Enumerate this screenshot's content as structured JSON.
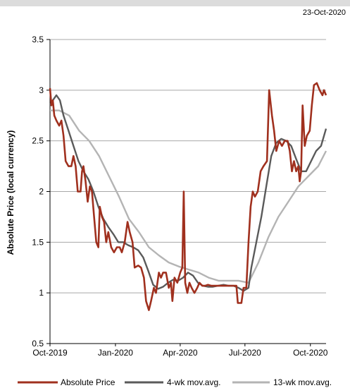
{
  "header": {
    "date": "23-Oct-2020"
  },
  "chart_data": {
    "type": "line",
    "title": "",
    "xlabel": "",
    "ylabel": "Absolute Price (local currency)",
    "ylim": [
      0.5,
      3.5
    ],
    "yticks": [
      0.5,
      1,
      1.5,
      2,
      2.5,
      3,
      3.5
    ],
    "ytick_labels": [
      "0.5",
      "1",
      "1.5",
      "2",
      "2.5",
      "3",
      "3.5"
    ],
    "xlim": [
      "2019-10-01",
      "2020-10-23"
    ],
    "xticks": [
      "2019-10-01",
      "2020-01-01",
      "2020-04-01",
      "2020-07-01",
      "2020-10-01"
    ],
    "xtick_labels": [
      "Oct-2019",
      "Jan-2020",
      "Apr-2020",
      "Jul-2020",
      "Oct-2020"
    ],
    "grid": "horizontal",
    "legend_position": "bottom",
    "colors": {
      "absolute": "#a0301e",
      "wk4": "#5a5a5a",
      "wk13": "#b4b4b4"
    },
    "series": [
      {
        "name": "Absolute Price",
        "points": [
          [
            "2019-10-01",
            3.02
          ],
          [
            "2019-10-03",
            2.85
          ],
          [
            "2019-10-05",
            2.9
          ],
          [
            "2019-10-07",
            2.75
          ],
          [
            "2019-10-10",
            2.7
          ],
          [
            "2019-10-14",
            2.65
          ],
          [
            "2019-10-17",
            2.7
          ],
          [
            "2019-10-20",
            2.55
          ],
          [
            "2019-10-23",
            2.3
          ],
          [
            "2019-10-27",
            2.25
          ],
          [
            "2019-10-31",
            2.25
          ],
          [
            "2019-11-03",
            2.35
          ],
          [
            "2019-11-06",
            2.25
          ],
          [
            "2019-11-09",
            2.0
          ],
          [
            "2019-11-13",
            2.0
          ],
          [
            "2019-11-15",
            2.2
          ],
          [
            "2019-11-17",
            2.25
          ],
          [
            "2019-11-20",
            2.1
          ],
          [
            "2019-11-23",
            1.9
          ],
          [
            "2019-11-26",
            2.05
          ],
          [
            "2019-11-29",
            2.0
          ],
          [
            "2019-12-02",
            1.75
          ],
          [
            "2019-12-05",
            1.5
          ],
          [
            "2019-12-08",
            1.45
          ],
          [
            "2019-12-10",
            1.85
          ],
          [
            "2019-12-13",
            1.75
          ],
          [
            "2019-12-16",
            1.7
          ],
          [
            "2019-12-19",
            1.5
          ],
          [
            "2019-12-22",
            1.6
          ],
          [
            "2019-12-26",
            1.45
          ],
          [
            "2019-12-30",
            1.4
          ],
          [
            "2020-01-03",
            1.45
          ],
          [
            "2020-01-07",
            1.45
          ],
          [
            "2020-01-10",
            1.4
          ],
          [
            "2020-01-14",
            1.5
          ],
          [
            "2020-01-18",
            1.7
          ],
          [
            "2020-01-21",
            1.6
          ],
          [
            "2020-01-25",
            1.5
          ],
          [
            "2020-01-28",
            1.25
          ],
          [
            "2020-02-02",
            1.27
          ],
          [
            "2020-02-06",
            1.25
          ],
          [
            "2020-02-10",
            1.15
          ],
          [
            "2020-02-13",
            0.92
          ],
          [
            "2020-02-17",
            0.83
          ],
          [
            "2020-02-20",
            0.92
          ],
          [
            "2020-02-24",
            1.05
          ],
          [
            "2020-02-27",
            1.0
          ],
          [
            "2020-03-02",
            1.2
          ],
          [
            "2020-03-05",
            1.15
          ],
          [
            "2020-03-08",
            1.2
          ],
          [
            "2020-03-12",
            1.2
          ],
          [
            "2020-03-16",
            1.05
          ],
          [
            "2020-03-19",
            1.1
          ],
          [
            "2020-03-21",
            0.92
          ],
          [
            "2020-03-24",
            1.15
          ],
          [
            "2020-03-28",
            1.1
          ],
          [
            "2020-04-01",
            1.2
          ],
          [
            "2020-04-04",
            1.25
          ],
          [
            "2020-04-06",
            2.0
          ],
          [
            "2020-04-08",
            1.1
          ],
          [
            "2020-04-11",
            1.0
          ],
          [
            "2020-04-14",
            1.1
          ],
          [
            "2020-04-17",
            1.05
          ],
          [
            "2020-04-21",
            1.0
          ],
          [
            "2020-04-25",
            1.05
          ],
          [
            "2020-04-28",
            1.1
          ],
          [
            "2020-05-02",
            1.07
          ],
          [
            "2020-05-06",
            1.07
          ],
          [
            "2020-05-10",
            1.08
          ],
          [
            "2020-05-15",
            1.07
          ],
          [
            "2020-05-20",
            1.07
          ],
          [
            "2020-05-25",
            1.07
          ],
          [
            "2020-06-01",
            1.07
          ],
          [
            "2020-06-08",
            1.07
          ],
          [
            "2020-06-15",
            1.07
          ],
          [
            "2020-06-19",
            1.07
          ],
          [
            "2020-06-21",
            0.9
          ],
          [
            "2020-06-26",
            0.9
          ],
          [
            "2020-06-29",
            1.05
          ],
          [
            "2020-07-03",
            1.05
          ],
          [
            "2020-07-06",
            1.5
          ],
          [
            "2020-07-09",
            1.85
          ],
          [
            "2020-07-12",
            2.0
          ],
          [
            "2020-07-15",
            1.95
          ],
          [
            "2020-07-19",
            2.0
          ],
          [
            "2020-07-23",
            2.2
          ],
          [
            "2020-07-27",
            2.25
          ],
          [
            "2020-08-01",
            2.3
          ],
          [
            "2020-08-04",
            3.0
          ],
          [
            "2020-08-08",
            2.75
          ],
          [
            "2020-08-11",
            2.6
          ],
          [
            "2020-08-14",
            2.4
          ],
          [
            "2020-08-18",
            2.5
          ],
          [
            "2020-08-22",
            2.45
          ],
          [
            "2020-08-26",
            2.5
          ],
          [
            "2020-08-30",
            2.5
          ],
          [
            "2020-09-02",
            2.4
          ],
          [
            "2020-09-05",
            2.2
          ],
          [
            "2020-09-08",
            2.3
          ],
          [
            "2020-09-11",
            2.2
          ],
          [
            "2020-09-14",
            2.25
          ],
          [
            "2020-09-16",
            2.1
          ],
          [
            "2020-09-18",
            2.2
          ],
          [
            "2020-09-20",
            2.85
          ],
          [
            "2020-09-23",
            2.45
          ],
          [
            "2020-09-26",
            2.55
          ],
          [
            "2020-09-30",
            2.6
          ],
          [
            "2020-10-03",
            2.85
          ],
          [
            "2020-10-06",
            3.05
          ],
          [
            "2020-10-10",
            3.07
          ],
          [
            "2020-10-14",
            3.0
          ],
          [
            "2020-10-18",
            2.95
          ],
          [
            "2020-10-20",
            3.0
          ],
          [
            "2020-10-23",
            2.95
          ]
        ]
      },
      {
        "name": "4-wk mov.avg.",
        "points": [
          [
            "2019-10-01",
            2.85
          ],
          [
            "2019-10-05",
            2.9
          ],
          [
            "2019-10-10",
            2.95
          ],
          [
            "2019-10-15",
            2.9
          ],
          [
            "2019-10-20",
            2.75
          ],
          [
            "2019-10-27",
            2.6
          ],
          [
            "2019-11-03",
            2.45
          ],
          [
            "2019-11-10",
            2.3
          ],
          [
            "2019-11-17",
            2.2
          ],
          [
            "2019-11-24",
            2.12
          ],
          [
            "2019-12-01",
            2.0
          ],
          [
            "2019-12-08",
            1.85
          ],
          [
            "2019-12-15",
            1.73
          ],
          [
            "2019-12-22",
            1.65
          ],
          [
            "2019-12-29",
            1.58
          ],
          [
            "2020-01-05",
            1.5
          ],
          [
            "2020-01-12",
            1.5
          ],
          [
            "2020-01-19",
            1.47
          ],
          [
            "2020-01-26",
            1.45
          ],
          [
            "2020-02-02",
            1.42
          ],
          [
            "2020-02-09",
            1.35
          ],
          [
            "2020-02-16",
            1.22
          ],
          [
            "2020-02-23",
            1.08
          ],
          [
            "2020-03-01",
            1.04
          ],
          [
            "2020-03-08",
            1.06
          ],
          [
            "2020-03-15",
            1.1
          ],
          [
            "2020-03-22",
            1.13
          ],
          [
            "2020-03-29",
            1.12
          ],
          [
            "2020-04-05",
            1.15
          ],
          [
            "2020-04-12",
            1.2
          ],
          [
            "2020-04-19",
            1.17
          ],
          [
            "2020-04-26",
            1.1
          ],
          [
            "2020-05-03",
            1.07
          ],
          [
            "2020-05-10",
            1.06
          ],
          [
            "2020-05-17",
            1.06
          ],
          [
            "2020-05-24",
            1.07
          ],
          [
            "2020-06-01",
            1.08
          ],
          [
            "2020-06-08",
            1.07
          ],
          [
            "2020-06-15",
            1.07
          ],
          [
            "2020-06-22",
            1.05
          ],
          [
            "2020-06-29",
            1.02
          ],
          [
            "2020-07-06",
            1.05
          ],
          [
            "2020-07-10",
            1.25
          ],
          [
            "2020-07-17",
            1.5
          ],
          [
            "2020-07-24",
            1.75
          ],
          [
            "2020-07-31",
            2.05
          ],
          [
            "2020-08-07",
            2.35
          ],
          [
            "2020-08-14",
            2.48
          ],
          [
            "2020-08-21",
            2.52
          ],
          [
            "2020-08-28",
            2.5
          ],
          [
            "2020-09-04",
            2.45
          ],
          [
            "2020-09-11",
            2.32
          ],
          [
            "2020-09-18",
            2.2
          ],
          [
            "2020-09-25",
            2.2
          ],
          [
            "2020-10-02",
            2.3
          ],
          [
            "2020-10-09",
            2.4
          ],
          [
            "2020-10-16",
            2.45
          ],
          [
            "2020-10-23",
            2.62
          ]
        ]
      },
      {
        "name": "13-wk mov.avg.",
        "points": [
          [
            "2019-10-01",
            2.8
          ],
          [
            "2019-10-14",
            2.8
          ],
          [
            "2019-10-28",
            2.75
          ],
          [
            "2019-11-11",
            2.6
          ],
          [
            "2019-11-25",
            2.5
          ],
          [
            "2019-12-09",
            2.35
          ],
          [
            "2019-12-23",
            2.15
          ],
          [
            "2020-01-06",
            1.95
          ],
          [
            "2020-01-20",
            1.73
          ],
          [
            "2020-02-03",
            1.6
          ],
          [
            "2020-02-17",
            1.45
          ],
          [
            "2020-03-02",
            1.37
          ],
          [
            "2020-03-16",
            1.3
          ],
          [
            "2020-03-30",
            1.26
          ],
          [
            "2020-04-13",
            1.23
          ],
          [
            "2020-04-27",
            1.2
          ],
          [
            "2020-05-11",
            1.15
          ],
          [
            "2020-05-25",
            1.12
          ],
          [
            "2020-06-08",
            1.12
          ],
          [
            "2020-06-22",
            1.12
          ],
          [
            "2020-07-06",
            1.1
          ],
          [
            "2020-07-20",
            1.3
          ],
          [
            "2020-08-03",
            1.55
          ],
          [
            "2020-08-17",
            1.75
          ],
          [
            "2020-08-31",
            1.9
          ],
          [
            "2020-09-14",
            2.05
          ],
          [
            "2020-09-28",
            2.15
          ],
          [
            "2020-10-12",
            2.25
          ],
          [
            "2020-10-23",
            2.4
          ]
        ]
      }
    ],
    "legend": [
      "Absolute Price",
      "4-wk mov.avg.",
      "13-wk mov.avg."
    ]
  }
}
